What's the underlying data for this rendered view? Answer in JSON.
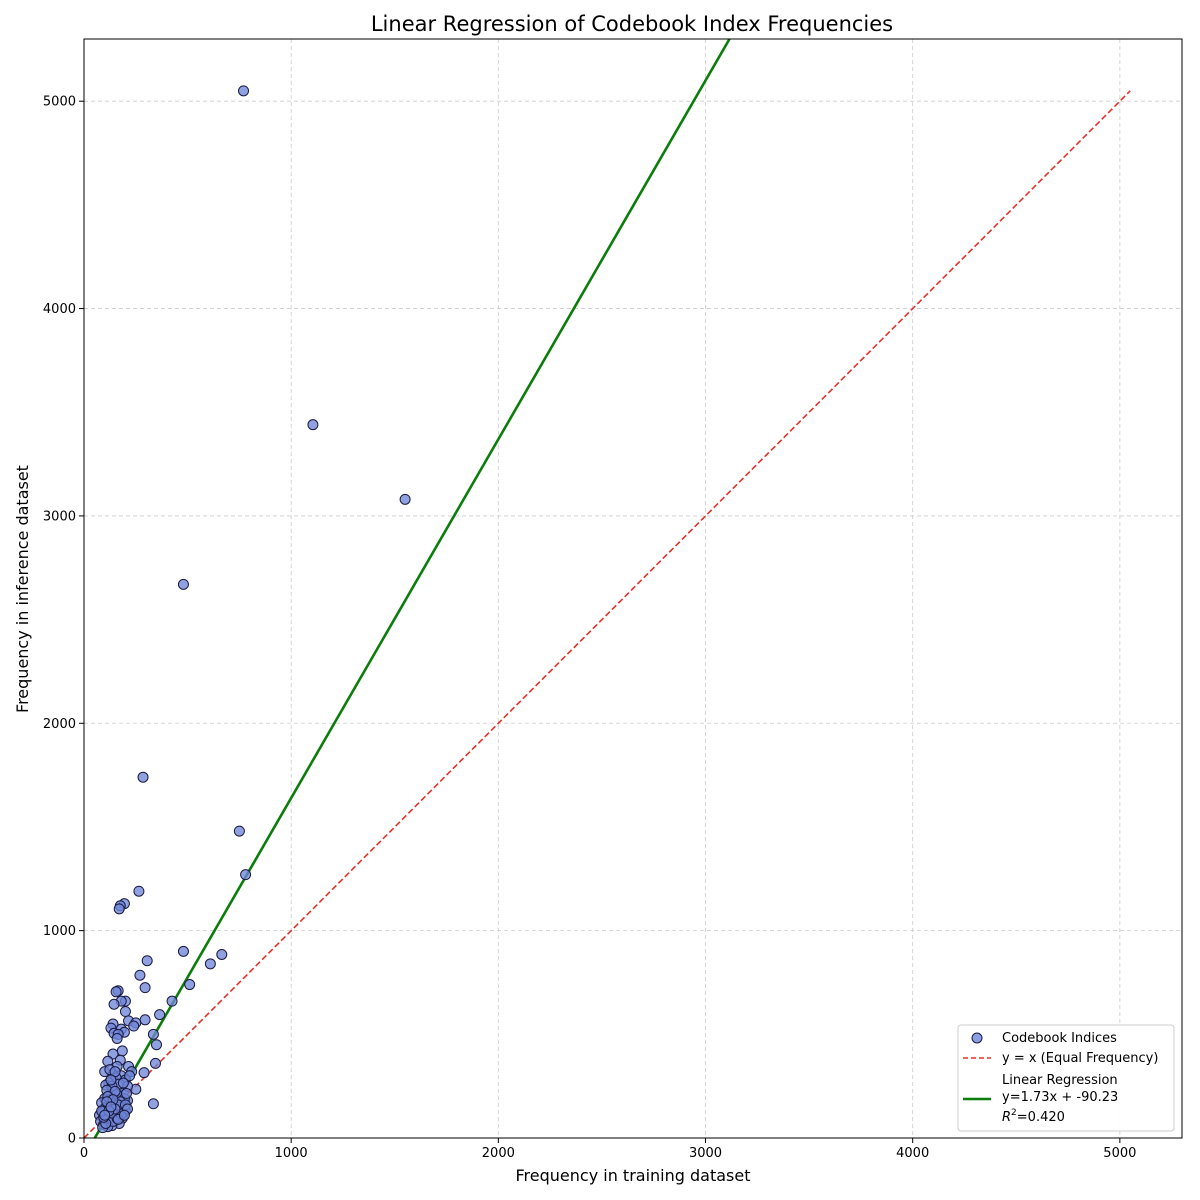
{
  "chart_data": {
    "type": "scatter",
    "title": "Linear Regression of Codebook Index Frequencies",
    "xlabel": "Frequency in training dataset",
    "ylabel": "Frequency in inference dataset",
    "xlim": [
      0,
      5300
    ],
    "ylim": [
      0,
      5300
    ],
    "x_ticks": [
      0,
      1000,
      2000,
      3000,
      4000,
      5000
    ],
    "y_ticks": [
      0,
      1000,
      2000,
      3000,
      4000,
      5000
    ],
    "grid": true,
    "legend_position": "lower-right",
    "legend": {
      "points": "Codebook Indices",
      "identity": "y = x (Equal Frequency)",
      "regression_line1": "Linear Regression",
      "regression_line2": "y=1.73x + -90.23",
      "regression_r2_value": "=0.420"
    },
    "colors": {
      "points_fill": "#6f86d9",
      "points_edge": "#1a1a40",
      "identity": "#e8302a",
      "regression": "#0a7d0a",
      "grid": "#cccccc"
    },
    "identity_line": {
      "slope": 1,
      "intercept": 0,
      "x_range": [
        0,
        5050
      ]
    },
    "regression": {
      "slope": 1.73,
      "intercept": -90.23,
      "r2": 0.42,
      "x_range": [
        52,
        5300
      ]
    },
    "series": [
      {
        "name": "Codebook Indices",
        "points": [
          [
            770,
            5050
          ],
          [
            1105,
            3440
          ],
          [
            1550,
            3080
          ],
          [
            480,
            2670
          ],
          [
            285,
            1740
          ],
          [
            750,
            1480
          ],
          [
            780,
            1270
          ],
          [
            265,
            1190
          ],
          [
            195,
            1130
          ],
          [
            175,
            1120
          ],
          [
            170,
            1105
          ],
          [
            480,
            900
          ],
          [
            665,
            885
          ],
          [
            610,
            840
          ],
          [
            305,
            855
          ],
          [
            270,
            785
          ],
          [
            510,
            740
          ],
          [
            295,
            725
          ],
          [
            165,
            710
          ],
          [
            155,
            705
          ],
          [
            425,
            660
          ],
          [
            200,
            660
          ],
          [
            180,
            660
          ],
          [
            145,
            645
          ],
          [
            200,
            610
          ],
          [
            365,
            595
          ],
          [
            295,
            570
          ],
          [
            215,
            565
          ],
          [
            250,
            555
          ],
          [
            240,
            540
          ],
          [
            140,
            550
          ],
          [
            130,
            530
          ],
          [
            180,
            525
          ],
          [
            195,
            510
          ],
          [
            145,
            505
          ],
          [
            335,
            500
          ],
          [
            165,
            500
          ],
          [
            160,
            480
          ],
          [
            350,
            450
          ],
          [
            185,
            420
          ],
          [
            140,
            405
          ],
          [
            175,
            375
          ],
          [
            115,
            370
          ],
          [
            345,
            360
          ],
          [
            160,
            345
          ],
          [
            215,
            345
          ],
          [
            230,
            320
          ],
          [
            100,
            320
          ],
          [
            290,
            315
          ],
          [
            140,
            305
          ],
          [
            180,
            300
          ],
          [
            155,
            290
          ],
          [
            200,
            280
          ],
          [
            120,
            265
          ],
          [
            105,
            255
          ],
          [
            250,
            235
          ],
          [
            140,
            240
          ],
          [
            190,
            220
          ],
          [
            130,
            210
          ],
          [
            165,
            200
          ],
          [
            100,
            190
          ],
          [
            210,
            180
          ],
          [
            150,
            170
          ],
          [
            335,
            165
          ],
          [
            120,
            160
          ],
          [
            180,
            150
          ],
          [
            95,
            140
          ],
          [
            140,
            135
          ],
          [
            200,
            130
          ],
          [
            110,
            120
          ],
          [
            160,
            115
          ],
          [
            75,
            110
          ],
          [
            130,
            100
          ],
          [
            185,
            95
          ],
          [
            100,
            90
          ],
          [
            150,
            85
          ],
          [
            80,
            80
          ],
          [
            120,
            75
          ],
          [
            170,
            70
          ],
          [
            95,
            65
          ],
          [
            135,
            60
          ],
          [
            115,
            55
          ],
          [
            90,
            50
          ],
          [
            125,
            330
          ],
          [
            150,
            320
          ],
          [
            170,
            260
          ],
          [
            135,
            250
          ],
          [
            110,
            230
          ],
          [
            160,
            210
          ],
          [
            195,
            190
          ],
          [
            125,
            180
          ],
          [
            85,
            170
          ],
          [
            145,
            155
          ],
          [
            105,
            145
          ],
          [
            175,
            135
          ],
          [
            90,
            125
          ],
          [
            155,
            105
          ],
          [
            120,
            95
          ],
          [
            140,
            80
          ],
          [
            105,
            70
          ],
          [
            160,
            95
          ],
          [
            210,
            250
          ],
          [
            220,
            300
          ],
          [
            130,
            280
          ],
          [
            150,
            225
          ],
          [
            175,
            175
          ],
          [
            115,
            200
          ],
          [
            190,
            265
          ],
          [
            205,
            215
          ],
          [
            125,
            140
          ],
          [
            95,
            100
          ],
          [
            85,
            130
          ],
          [
            135,
            120
          ],
          [
            165,
            160
          ],
          [
            140,
            185
          ],
          [
            200,
            160
          ],
          [
            110,
            175
          ],
          [
            180,
            115
          ],
          [
            150,
            140
          ],
          [
            120,
            130
          ],
          [
            100,
            110
          ],
          [
            165,
            90
          ],
          [
            130,
            150
          ],
          [
            210,
            140
          ],
          [
            195,
            110
          ]
        ]
      }
    ]
  }
}
